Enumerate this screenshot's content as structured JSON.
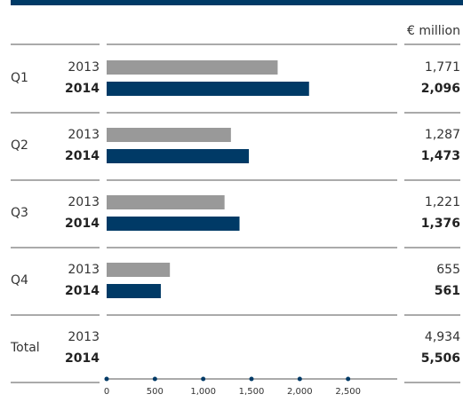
{
  "chart_data": {
    "type": "bar",
    "unit_label": "€ million",
    "categories": [
      "Q1",
      "Q2",
      "Q3",
      "Q4"
    ],
    "series": [
      {
        "name": "2013",
        "color": "#999999",
        "values": [
          1771,
          1287,
          1221,
          655
        ],
        "value_labels": [
          "1,771",
          "1,287",
          "1,221",
          "655"
        ]
      },
      {
        "name": "2014",
        "color": "#003a66",
        "values": [
          2096,
          1473,
          1376,
          561
        ],
        "value_labels": [
          "2,096",
          "1,473",
          "1,376",
          "561"
        ]
      }
    ],
    "total": {
      "label": "Total",
      "values": [
        4934,
        5506
      ],
      "value_labels": [
        "4,934",
        "5,506"
      ]
    },
    "xlim": [
      0,
      3000
    ],
    "xticks": [
      0,
      500,
      {
        "value": 1000,
        "label": "1,000"
      },
      {
        "value": 1500,
        "label": "1,500"
      },
      {
        "value": 2000,
        "label": "2,000"
      },
      {
        "value": 2500,
        "label": "2,500"
      }
    ]
  }
}
